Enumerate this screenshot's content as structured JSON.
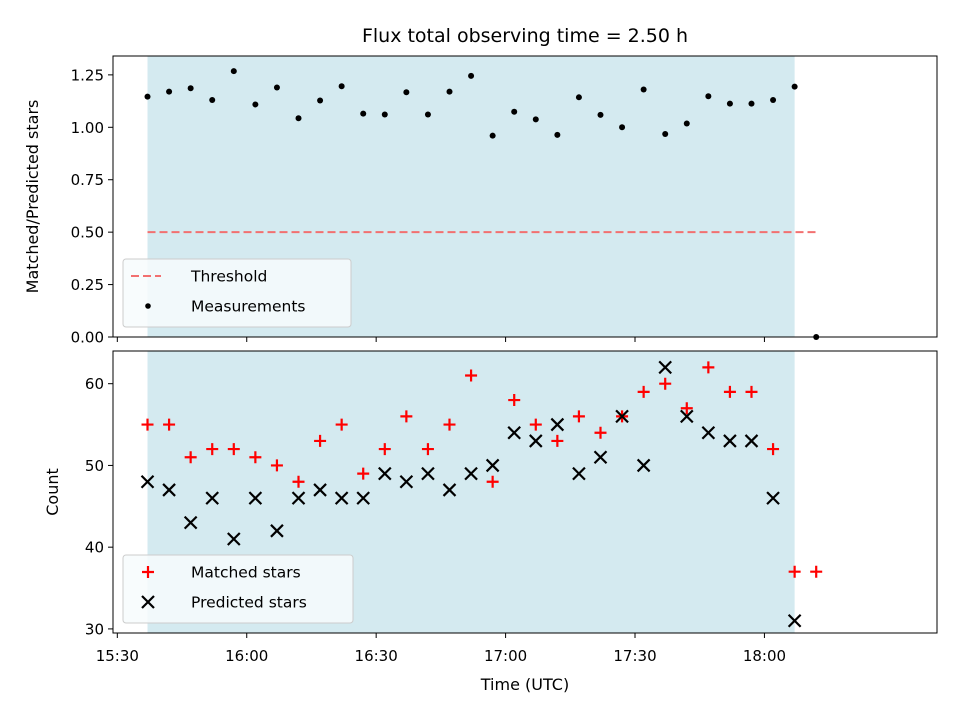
{
  "chart_data": [
    {
      "type": "scatter",
      "title": "Flux total observing time = 2.50 h",
      "xlabel": "",
      "ylabel": "Matched/Predicted stars",
      "ylim": [
        0.0,
        1.34
      ],
      "yticks": [
        "0.00",
        "0.25",
        "0.50",
        "0.75",
        "1.00",
        "1.25"
      ],
      "ytick_values": [
        0.0,
        0.25,
        0.5,
        0.75,
        1.0,
        1.25
      ],
      "shaded_span": {
        "start": "15:37",
        "end": "18:07",
        "color": "#d4eaf0"
      },
      "threshold": {
        "name": "Threshold",
        "value": 0.5,
        "x_start": "15:37",
        "x_end": "18:12",
        "color": "#f27070"
      },
      "series": [
        {
          "name": "Measurements",
          "color": "#000000",
          "x": [
            "15:37",
            "15:42",
            "15:47",
            "15:52",
            "15:57",
            "16:02",
            "16:07",
            "16:12",
            "16:17",
            "16:22",
            "16:27",
            "16:32",
            "16:37",
            "16:42",
            "16:47",
            "16:52",
            "16:57",
            "17:02",
            "17:07",
            "17:12",
            "17:17",
            "17:22",
            "17:27",
            "17:32",
            "17:37",
            "17:42",
            "17:47",
            "17:52",
            "17:57",
            "18:02",
            "18:07",
            "18:12"
          ],
          "values": [
            1.146,
            1.17,
            1.186,
            1.13,
            1.268,
            1.109,
            1.19,
            1.043,
            1.128,
            1.196,
            1.065,
            1.061,
            1.167,
            1.061,
            1.17,
            1.245,
            0.96,
            1.074,
            1.038,
            0.964,
            1.143,
            1.059,
            1.0,
            1.18,
            0.968,
            1.018,
            1.148,
            1.113,
            1.113,
            1.13,
            1.194,
            0.0
          ]
        }
      ],
      "legend": [
        "Threshold",
        "Measurements"
      ]
    },
    {
      "type": "scatter",
      "title": "",
      "xlabel": "Time (UTC)",
      "ylabel": "Count",
      "ylim": [
        29.5,
        64
      ],
      "yticks": [
        "30",
        "40",
        "50",
        "60"
      ],
      "ytick_values": [
        30,
        40,
        50,
        60
      ],
      "xlim": [
        "15:29",
        "18:40"
      ],
      "xticks": [
        "15:30",
        "16:00",
        "16:30",
        "17:00",
        "17:30",
        "18:00"
      ],
      "shaded_span": {
        "start": "15:37",
        "end": "18:07",
        "color": "#d4eaf0"
      },
      "series": [
        {
          "name": "Matched stars",
          "marker": "+",
          "color": "#ff0000",
          "x": [
            "15:37",
            "15:42",
            "15:47",
            "15:52",
            "15:57",
            "16:02",
            "16:07",
            "16:12",
            "16:17",
            "16:22",
            "16:27",
            "16:32",
            "16:37",
            "16:42",
            "16:47",
            "16:52",
            "16:57",
            "17:02",
            "17:07",
            "17:12",
            "17:17",
            "17:22",
            "17:27",
            "17:32",
            "17:37",
            "17:42",
            "17:47",
            "17:52",
            "17:57",
            "18:02",
            "18:07",
            "18:12"
          ],
          "values": [
            55,
            55,
            51,
            52,
            52,
            51,
            50,
            48,
            53,
            55,
            49,
            52,
            56,
            52,
            55,
            61,
            48,
            58,
            55,
            53,
            56,
            54,
            56,
            59,
            60,
            57,
            62,
            59,
            59,
            52,
            37,
            37
          ]
        },
        {
          "name": "Predicted stars",
          "marker": "x",
          "color": "#000000",
          "x": [
            "15:37",
            "15:42",
            "15:47",
            "15:52",
            "15:57",
            "16:02",
            "16:07",
            "16:12",
            "16:17",
            "16:22",
            "16:27",
            "16:32",
            "16:37",
            "16:42",
            "16:47",
            "16:52",
            "16:57",
            "17:02",
            "17:07",
            "17:12",
            "17:17",
            "17:22",
            "17:27",
            "17:32",
            "17:37",
            "17:42",
            "17:47",
            "17:52",
            "17:57",
            "18:02",
            "18:07"
          ],
          "values": [
            48,
            47,
            43,
            46,
            41,
            46,
            42,
            46,
            47,
            46,
            46,
            49,
            48,
            49,
            47,
            49,
            50,
            54,
            53,
            55,
            49,
            51,
            56,
            50,
            62,
            56,
            54,
            53,
            53,
            46,
            31
          ]
        }
      ],
      "legend": [
        "Matched stars",
        "Predicted stars"
      ]
    }
  ]
}
